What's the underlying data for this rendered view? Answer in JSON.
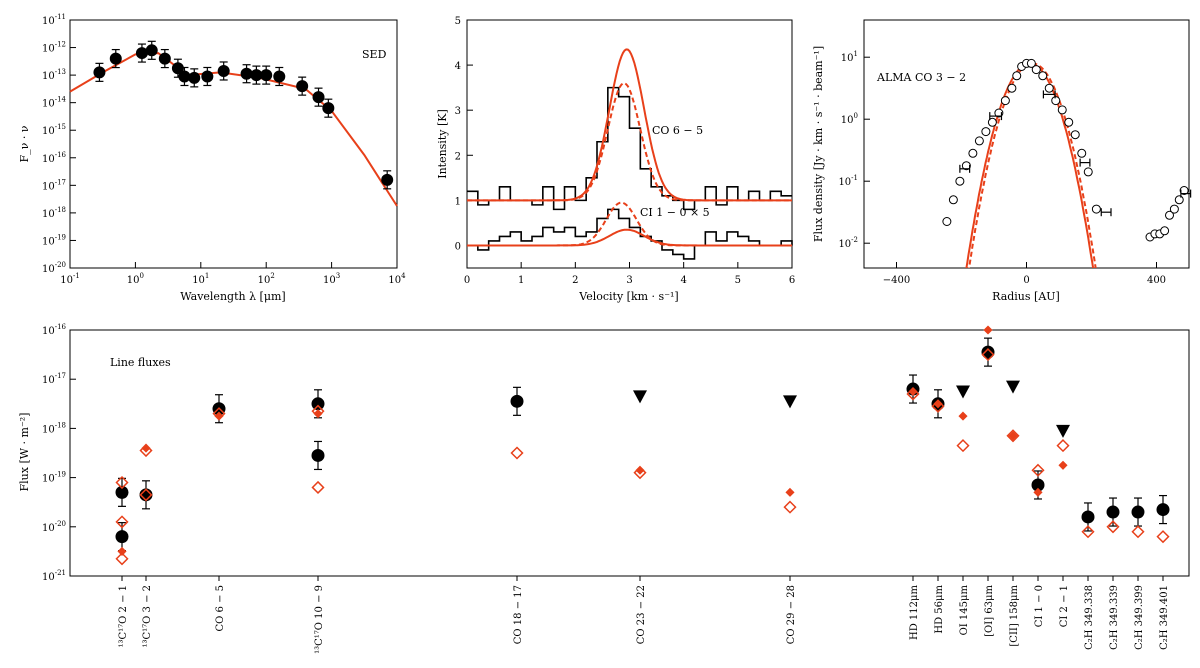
{
  "colors": {
    "model": "#e8401a",
    "obs": "#000000"
  },
  "chart_data": [
    {
      "id": "sed",
      "type": "scatter",
      "title": "SED",
      "xlabel": "Wavelength λ [μm]",
      "ylabel": "F_ν · ν",
      "xscale": "log",
      "yscale": "log",
      "xlim": [
        -1,
        4
      ],
      "ylim": [
        -20,
        -11
      ],
      "xtick_labels": [
        "10^-1",
        "10^0",
        "10^1",
        "10^2",
        "10^3",
        "10^4"
      ],
      "ytick_labels": [
        "10^-20",
        "10^-19",
        "10^-18",
        "10^-17",
        "10^-16",
        "10^-15",
        "10^-14",
        "10^-13",
        "10^-12",
        "10^-11"
      ],
      "points_log": [
        [
          -0.55,
          -12.9
        ],
        [
          -0.3,
          -12.4
        ],
        [
          0.1,
          -12.2
        ],
        [
          0.25,
          -12.1
        ],
        [
          0.45,
          -12.4
        ],
        [
          0.65,
          -12.75
        ],
        [
          0.75,
          -13.05
        ],
        [
          0.9,
          -13.1
        ],
        [
          1.1,
          -13.05
        ],
        [
          1.35,
          -12.85
        ],
        [
          1.7,
          -12.95
        ],
        [
          1.85,
          -13.0
        ],
        [
          2.0,
          -13.0
        ],
        [
          2.2,
          -13.05
        ],
        [
          2.55,
          -13.4
        ],
        [
          2.8,
          -13.8
        ],
        [
          2.95,
          -14.2
        ],
        [
          3.85,
          -16.8
        ]
      ],
      "model_log": [
        [
          -1,
          -13.6
        ],
        [
          -0.5,
          -12.9
        ],
        [
          0,
          -12.25
        ],
        [
          0.35,
          -12.2
        ],
        [
          0.8,
          -13.0
        ],
        [
          1.3,
          -12.9
        ],
        [
          1.9,
          -13.1
        ],
        [
          2.6,
          -13.5
        ],
        [
          3.0,
          -14.3
        ],
        [
          3.5,
          -15.9
        ],
        [
          4.0,
          -17.75
        ]
      ]
    },
    {
      "id": "spectrum",
      "type": "line",
      "xlabel": "Velocity [km · s⁻¹]",
      "ylabel": "Intensity [K]",
      "xlim": [
        0,
        6
      ],
      "ylim": [
        -0.5,
        5
      ],
      "xtick_labels": [
        "0",
        "1",
        "2",
        "3",
        "4",
        "5",
        "6"
      ],
      "ytick_labels": [
        "0",
        "1",
        "2",
        "3",
        "4",
        "5"
      ],
      "annotations": [
        "CO 6 − 5",
        "CI 1 − 0 × 5"
      ],
      "series": [
        {
          "name": "CO 6-5 observed",
          "step": [
            [
              0,
              1.2
            ],
            [
              0.2,
              0.9
            ],
            [
              0.4,
              1.0
            ],
            [
              0.6,
              1.3
            ],
            [
              0.8,
              1.0
            ],
            [
              1.0,
              1.0
            ],
            [
              1.2,
              0.9
            ],
            [
              1.4,
              1.3
            ],
            [
              1.6,
              0.8
            ],
            [
              1.8,
              1.3
            ],
            [
              2.0,
              1.0
            ],
            [
              2.2,
              1.5
            ],
            [
              2.4,
              2.3
            ],
            [
              2.6,
              3.5
            ],
            [
              2.8,
              3.3
            ],
            [
              3.0,
              2.6
            ],
            [
              3.2,
              1.7
            ],
            [
              3.4,
              1.3
            ],
            [
              3.6,
              1.1
            ],
            [
              3.8,
              1.0
            ],
            [
              4.0,
              0.8
            ],
            [
              4.2,
              1.0
            ],
            [
              4.4,
              1.3
            ],
            [
              4.6,
              0.9
            ],
            [
              4.8,
              1.3
            ],
            [
              5.0,
              1.0
            ],
            [
              5.2,
              1.2
            ],
            [
              5.4,
              1.0
            ],
            [
              5.6,
              1.2
            ],
            [
              5.8,
              1.1
            ],
            [
              6.0,
              1.1
            ]
          ]
        },
        {
          "name": "CO 6-5 model (solid)",
          "baseline": 1.0,
          "peak": 4.35,
          "center": 2.95,
          "sigma": 0.32
        },
        {
          "name": "CO 6-5 model (dashed)",
          "baseline": 1.0,
          "peak": 3.6,
          "center": 2.9,
          "sigma": 0.3
        },
        {
          "name": "CI 1-0 x5 observed",
          "step": [
            [
              0,
              0.0
            ],
            [
              0.2,
              -0.1
            ],
            [
              0.4,
              0.1
            ],
            [
              0.6,
              0.2
            ],
            [
              0.8,
              0.3
            ],
            [
              1.0,
              0.1
            ],
            [
              1.2,
              0.2
            ],
            [
              1.4,
              0.4
            ],
            [
              1.6,
              0.3
            ],
            [
              1.8,
              0.4
            ],
            [
              2.0,
              0.2
            ],
            [
              2.2,
              0.3
            ],
            [
              2.4,
              0.6
            ],
            [
              2.6,
              0.8
            ],
            [
              2.8,
              0.6
            ],
            [
              3.0,
              0.4
            ],
            [
              3.2,
              0.2
            ],
            [
              3.4,
              0.1
            ],
            [
              3.6,
              -0.1
            ],
            [
              3.8,
              -0.2
            ],
            [
              4.0,
              -0.3
            ],
            [
              4.2,
              0.0
            ],
            [
              4.4,
              0.3
            ],
            [
              4.6,
              0.1
            ],
            [
              4.8,
              0.3
            ],
            [
              5.0,
              0.2
            ],
            [
              5.2,
              0.1
            ],
            [
              5.4,
              0.0
            ],
            [
              5.6,
              0.0
            ],
            [
              5.8,
              0.1
            ],
            [
              6.0,
              0.0
            ]
          ]
        },
        {
          "name": "CI 1-0 model (solid)",
          "baseline": 0.0,
          "peak": 0.35,
          "center": 2.95,
          "sigma": 0.32
        },
        {
          "name": "CI 1-0 model (dashed)",
          "baseline": 0.0,
          "peak": 0.95,
          "center": 2.85,
          "sigma": 0.28
        }
      ]
    },
    {
      "id": "radial",
      "type": "scatter",
      "title": "ALMA CO 3 − 2",
      "xlabel": "Radius [AU]",
      "ylabel": "Flux density [Jy · km · s⁻¹ · beam⁻¹]",
      "yscale": "log",
      "xlim": [
        -500,
        500
      ],
      "ylim": [
        -2.4,
        1.6
      ],
      "xtick_labels": [
        "−400",
        "0",
        "400"
      ],
      "ytick_labels": [
        "10^-2",
        "10^-1",
        "10^0",
        "10^1"
      ],
      "points": [
        [
          -245,
          -1.65
        ],
        [
          -225,
          -1.3
        ],
        [
          -205,
          -1.0
        ],
        [
          -185,
          -0.75
        ],
        [
          -165,
          -0.55
        ],
        [
          -145,
          -0.35
        ],
        [
          -125,
          -0.2
        ],
        [
          -105,
          -0.05
        ],
        [
          -85,
          0.1
        ],
        [
          -65,
          0.3
        ],
        [
          -45,
          0.5
        ],
        [
          -30,
          0.7
        ],
        [
          -15,
          0.85
        ],
        [
          0,
          0.9
        ],
        [
          15,
          0.9
        ],
        [
          30,
          0.8
        ],
        [
          50,
          0.7
        ],
        [
          70,
          0.5
        ],
        [
          90,
          0.3
        ],
        [
          110,
          0.15
        ],
        [
          130,
          -0.05
        ],
        [
          150,
          -0.25
        ],
        [
          170,
          -0.55
        ],
        [
          190,
          -0.85
        ],
        [
          215,
          -1.45
        ],
        [
          380,
          -1.9
        ],
        [
          395,
          -1.85
        ],
        [
          410,
          -1.85
        ],
        [
          425,
          -1.8
        ],
        [
          440,
          -1.55
        ],
        [
          455,
          -1.45
        ],
        [
          470,
          -1.3
        ],
        [
          485,
          -1.15
        ]
      ],
      "errorbars_x": [
        [
          -190,
          -0.8,
          15
        ],
        [
          -95,
          0.05,
          18
        ],
        [
          70,
          0.4,
          18
        ],
        [
          180,
          -0.7,
          15
        ],
        [
          245,
          -1.5,
          15
        ],
        [
          490,
          -1.2,
          15
        ]
      ],
      "model_center": 10,
      "model_sigma": 115,
      "model_peak_log": 0.9
    },
    {
      "id": "line_fluxes",
      "type": "scatter",
      "title": "Line fluxes",
      "ylabel": "Flux [W · m⁻²]",
      "yscale": "log",
      "ylim": [
        -21,
        -16
      ],
      "ytick_labels": [
        "10^-21",
        "10^-20",
        "10^-19",
        "10^-18",
        "10^-17",
        "10^-16"
      ],
      "categories": [
        "¹³C¹⁷O 2 − 1",
        "¹³C¹⁷O 3 − 2",
        "CO 6 − 5",
        "¹³C¹⁷O 10 − 9",
        "CO 18 − 17",
        "CO 23 − 22",
        "CO 29 − 28",
        "HD 112μm",
        "HD 56μm",
        "OI 145μm",
        "[OI] 63μm",
        "[CII] 158μm",
        "CI 1 − 0",
        "CI 2 − 1",
        "C₂H 349.338",
        "C₂H 349.339",
        "C₂H 349.399",
        "C₂H 349.401"
      ],
      "observed": [
        -19.3,
        -19.35,
        -17.6,
        -17.5,
        -17.45,
        null,
        null,
        -17.2,
        -17.5,
        null,
        -16.45,
        null,
        -19.15,
        null,
        -19.8,
        -19.7,
        -19.7,
        -19.65
      ],
      "observed_extra": [
        [
          0,
          -20.2
        ],
        [
          3,
          -18.55
        ]
      ],
      "upper_limits": [
        null,
        null,
        null,
        null,
        null,
        -17.35,
        -17.45,
        null,
        null,
        -17.25,
        null,
        -17.15,
        null,
        -18.05,
        null,
        null,
        null,
        null
      ],
      "model_diamond": [
        -20.65,
        -18.45,
        -17.7,
        -17.65,
        -18.5,
        -18.9,
        -19.6,
        -17.3,
        -17.55,
        -18.35,
        -16.5,
        -18.15,
        -18.85,
        -18.35,
        -20.1,
        -20.0,
        -20.1,
        -20.2
      ],
      "model_diamond_extra": [
        [
          0,
          -19.9
        ],
        [
          0,
          -19.1
        ],
        [
          1,
          -19.35
        ],
        [
          3,
          -19.2
        ]
      ],
      "model_small": [
        -20.5,
        -18.4,
        -17.75,
        -17.7,
        null,
        -18.85,
        -19.3,
        -17.25,
        -17.5,
        -17.75,
        -16.0,
        -18.15,
        -19.3,
        -18.75,
        null,
        null,
        null,
        null
      ]
    }
  ]
}
